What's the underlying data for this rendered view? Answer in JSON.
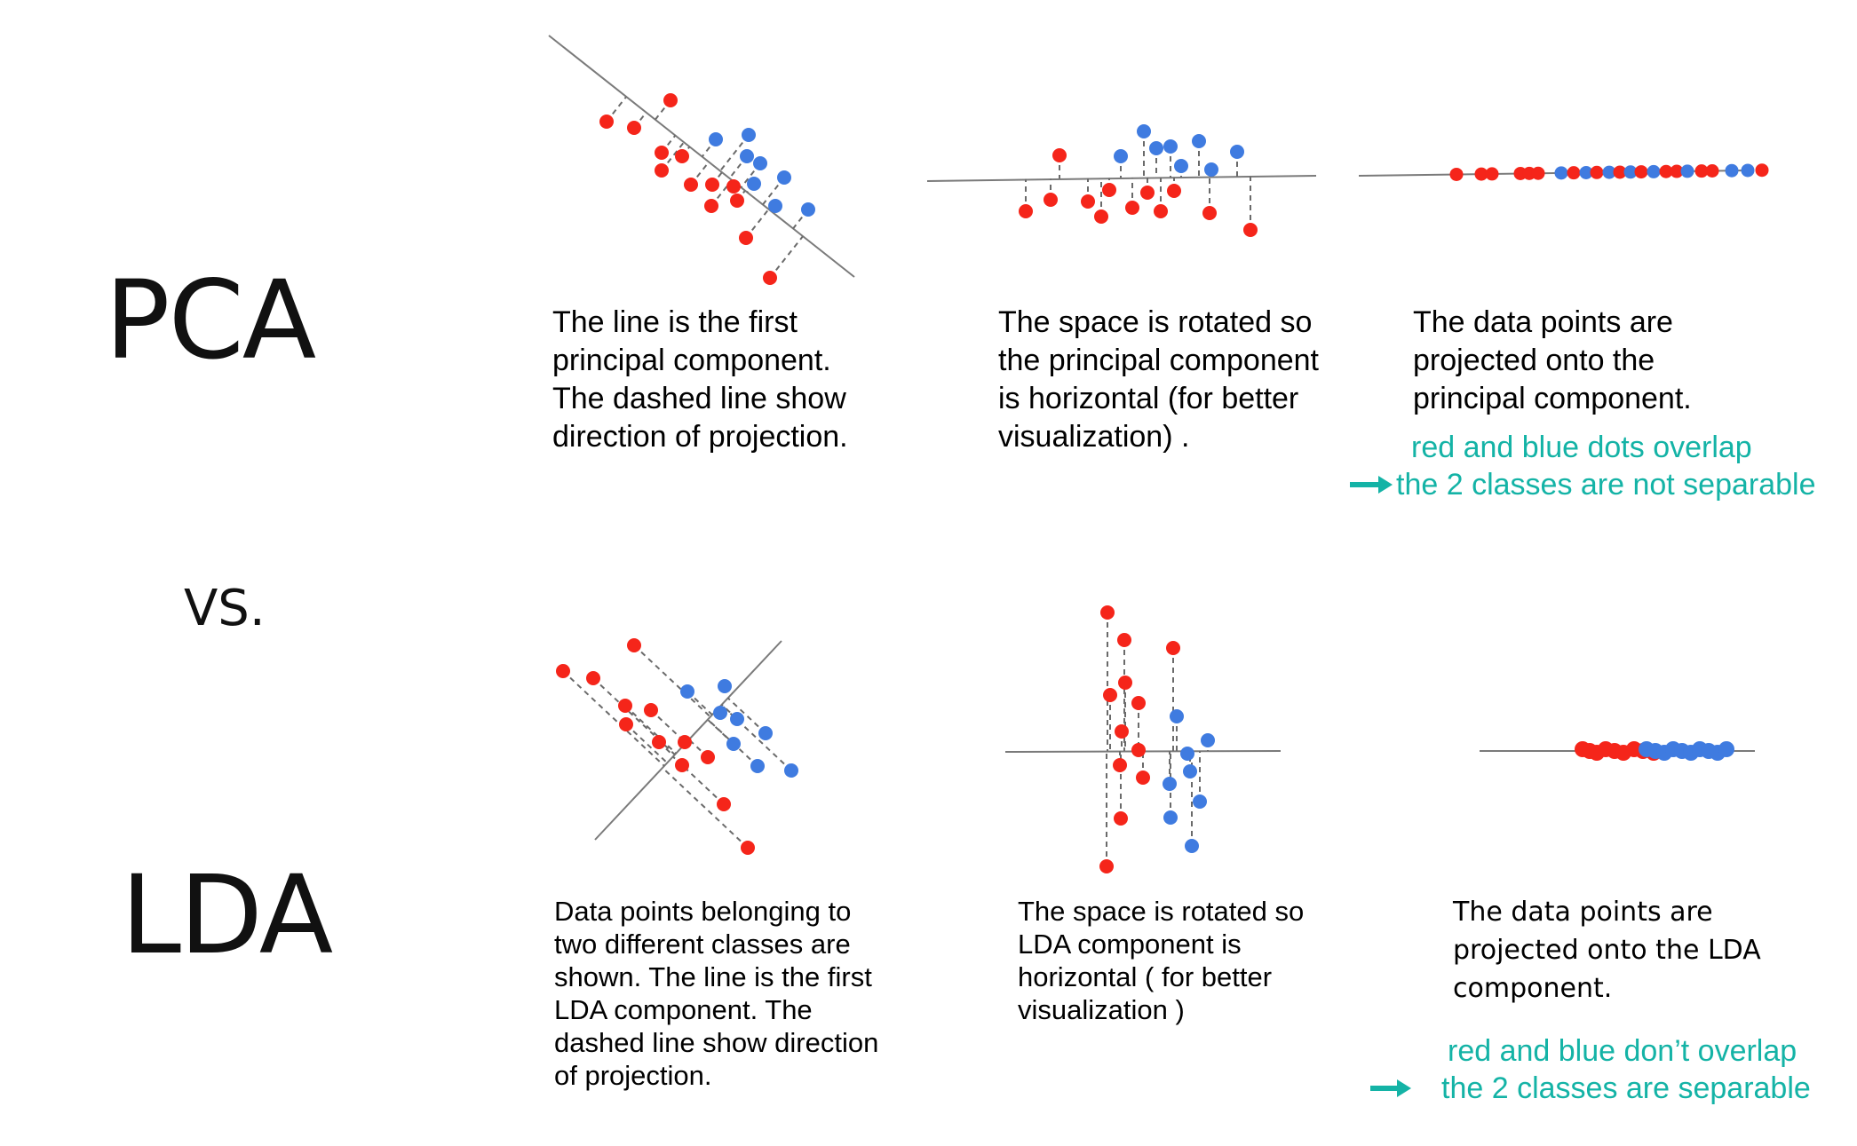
{
  "labels": {
    "pca": "PCA",
    "vs": "VS.",
    "lda": "LDA"
  },
  "colors": {
    "red": "#f5251a",
    "blue": "#3f7be0",
    "axis": "#7a7a7a",
    "dash": "#6a6a6a",
    "note": "#14b3a6"
  },
  "pca": {
    "caption1": [
      "The line is the first",
      "principal component.",
      "The dashed line show",
      "direction of projection."
    ],
    "caption2": [
      "The space is rotated so",
      "the principal component",
      "is horizontal (for better",
      "visualization) ."
    ],
    "caption3": [
      "The data points are",
      "projected onto the",
      "principal component."
    ],
    "note_line1": "red and blue dots overlap",
    "note_line2": "the 2 classes are not separable"
  },
  "lda": {
    "caption1": [
      "Data points belonging to",
      "two different classes are",
      "shown. The line is the first",
      "LDA component. The",
      "dashed line show direction",
      "of projection."
    ],
    "caption2": [
      "The space is rotated so",
      "LDA component is",
      "horizontal ( for better",
      "visualization )"
    ],
    "caption3": [
      "The data points are",
      "projected onto the LDA",
      "component."
    ],
    "note_line1": "red and blue don’t overlap",
    "note_line2": "the 2 classes are separable"
  }
}
